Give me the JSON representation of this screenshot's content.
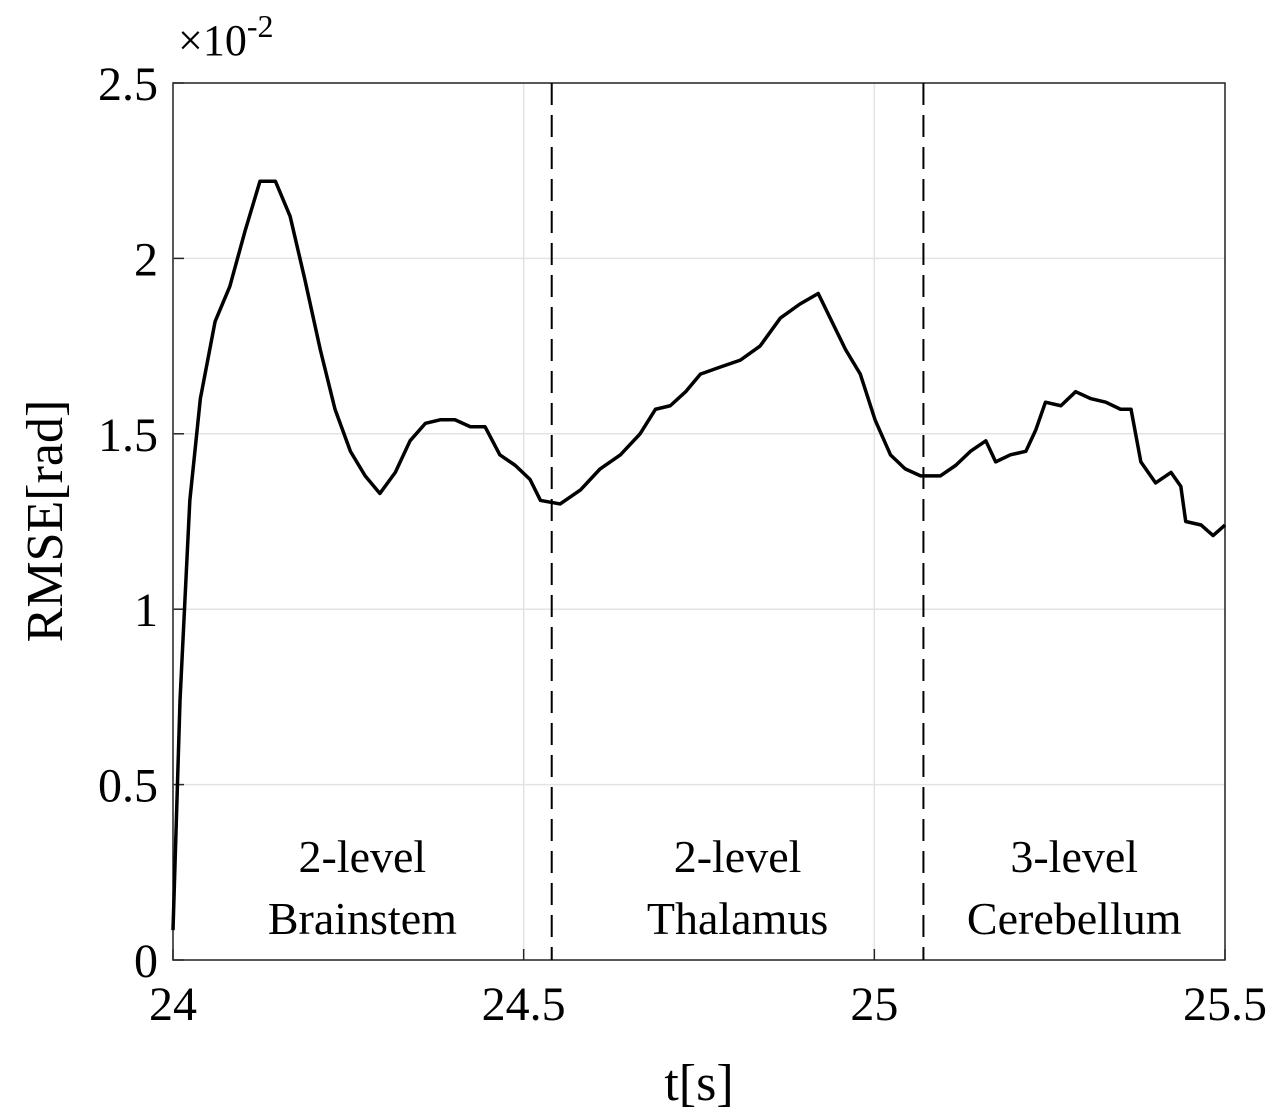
{
  "chart_data": {
    "type": "line",
    "xlabel": "t[s]",
    "ylabel": "RMSE[rad]",
    "y_scale_label": {
      "base": "×10",
      "exponent": "-2"
    },
    "xlim": [
      24,
      25.5
    ],
    "ylim": [
      0,
      2.5
    ],
    "xticks": [
      24,
      24.5,
      25,
      25.5
    ],
    "yticks": [
      0,
      0.5,
      1,
      1.5,
      2,
      2.5
    ],
    "grid": true,
    "vlines": [
      24.54,
      25.07
    ],
    "annotations": [
      {
        "lines": [
          "2-level",
          "Brainstem"
        ]
      },
      {
        "lines": [
          "2-level",
          "Thalamus"
        ]
      },
      {
        "lines": [
          "3-level",
          "Cerebellum"
        ]
      }
    ],
    "x": [
      24.0,
      24.01,
      24.024,
      24.039,
      24.06,
      24.081,
      24.103,
      24.124,
      24.146,
      24.167,
      24.188,
      24.21,
      24.231,
      24.253,
      24.274,
      24.295,
      24.317,
      24.338,
      24.36,
      24.381,
      24.402,
      24.424,
      24.445,
      24.466,
      24.488,
      24.509,
      24.524,
      24.552,
      24.581,
      24.609,
      24.638,
      24.666,
      24.688,
      24.709,
      24.731,
      24.752,
      24.78,
      24.809,
      24.837,
      24.866,
      24.894,
      24.92,
      24.937,
      24.959,
      24.98,
      25.001,
      25.023,
      25.044,
      25.066,
      25.094,
      25.116,
      25.137,
      25.159,
      25.173,
      25.194,
      25.216,
      25.23,
      25.244,
      25.266,
      25.287,
      25.309,
      25.33,
      25.351,
      25.366,
      25.38,
      25.401,
      25.423,
      25.437,
      25.444,
      25.466,
      25.483,
      25.5
    ],
    "series": [
      {
        "color": "#000000",
        "values": [
          0.085,
          0.74,
          1.31,
          1.6,
          1.82,
          1.92,
          2.08,
          2.22,
          2.22,
          2.12,
          1.94,
          1.74,
          1.57,
          1.45,
          1.38,
          1.33,
          1.39,
          1.48,
          1.53,
          1.54,
          1.54,
          1.52,
          1.52,
          1.44,
          1.41,
          1.37,
          1.31,
          1.3,
          1.34,
          1.4,
          1.44,
          1.5,
          1.57,
          1.58,
          1.62,
          1.67,
          1.69,
          1.71,
          1.75,
          1.83,
          1.87,
          1.9,
          1.83,
          1.74,
          1.67,
          1.54,
          1.44,
          1.4,
          1.38,
          1.38,
          1.41,
          1.45,
          1.48,
          1.42,
          1.44,
          1.45,
          1.51,
          1.59,
          1.58,
          1.62,
          1.6,
          1.59,
          1.57,
          1.57,
          1.42,
          1.36,
          1.39,
          1.35,
          1.25,
          1.24,
          1.21,
          1.24
        ]
      }
    ]
  }
}
